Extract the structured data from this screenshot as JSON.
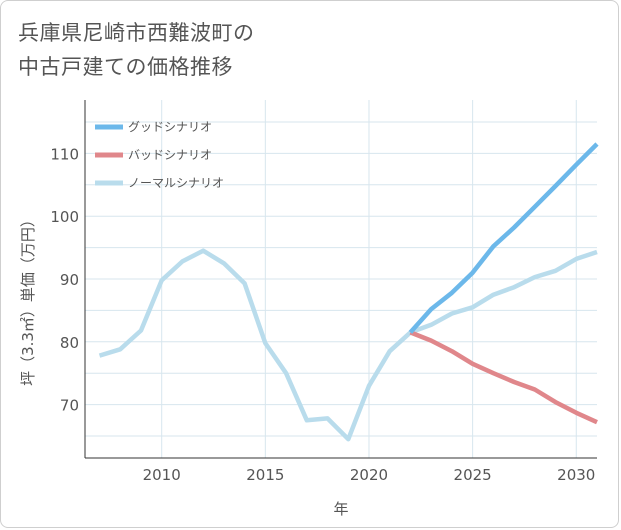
{
  "title": "兵庫県尼崎市西難波町の\n中古戸建ての価格推移",
  "chart_data": {
    "type": "line",
    "xlabel": "年",
    "ylabel": "坪（3.3㎡）単価（万円）",
    "xlim": [
      2006.3,
      2031
    ],
    "ylim": [
      61.5,
      118.5
    ],
    "xticks": [
      2010,
      2015,
      2020,
      2025,
      2030
    ],
    "yticks": [
      70,
      80,
      90,
      100,
      110
    ],
    "grid": true,
    "legend_position": "top-left",
    "series": [
      {
        "name": "グッドシナリオ",
        "color": "#6cb8ea",
        "x": [
          2022,
          2023,
          2024,
          2025,
          2026,
          2027,
          2028,
          2029,
          2030,
          2031
        ],
        "y": [
          81.5,
          85.2,
          87.8,
          91.0,
          95.2,
          98.2,
          101.5,
          104.8,
          108.2,
          111.5
        ]
      },
      {
        "name": "バッドシナリオ",
        "color": "#e0878b",
        "x": [
          2022,
          2023,
          2024,
          2025,
          2026,
          2027,
          2028,
          2029,
          2030,
          2031
        ],
        "y": [
          81.5,
          80.2,
          78.5,
          76.5,
          75.0,
          73.6,
          72.4,
          70.4,
          68.7,
          67.2
        ]
      },
      {
        "name": "ノーマルシナリオ",
        "color": "#b9dcec",
        "x": [
          2007,
          2008,
          2009,
          2010,
          2011,
          2012,
          2013,
          2014,
          2015,
          2016,
          2017,
          2018,
          2019,
          2020,
          2021,
          2022,
          2023,
          2024,
          2025,
          2026,
          2027,
          2028,
          2029,
          2030,
          2031
        ],
        "y": [
          77.8,
          78.8,
          81.8,
          89.8,
          92.8,
          94.5,
          92.5,
          89.3,
          79.8,
          75.0,
          67.5,
          67.8,
          64.5,
          73.0,
          78.5,
          81.5,
          82.7,
          84.5,
          85.5,
          87.5,
          88.7,
          90.3,
          91.3,
          93.2,
          94.3
        ]
      }
    ]
  }
}
